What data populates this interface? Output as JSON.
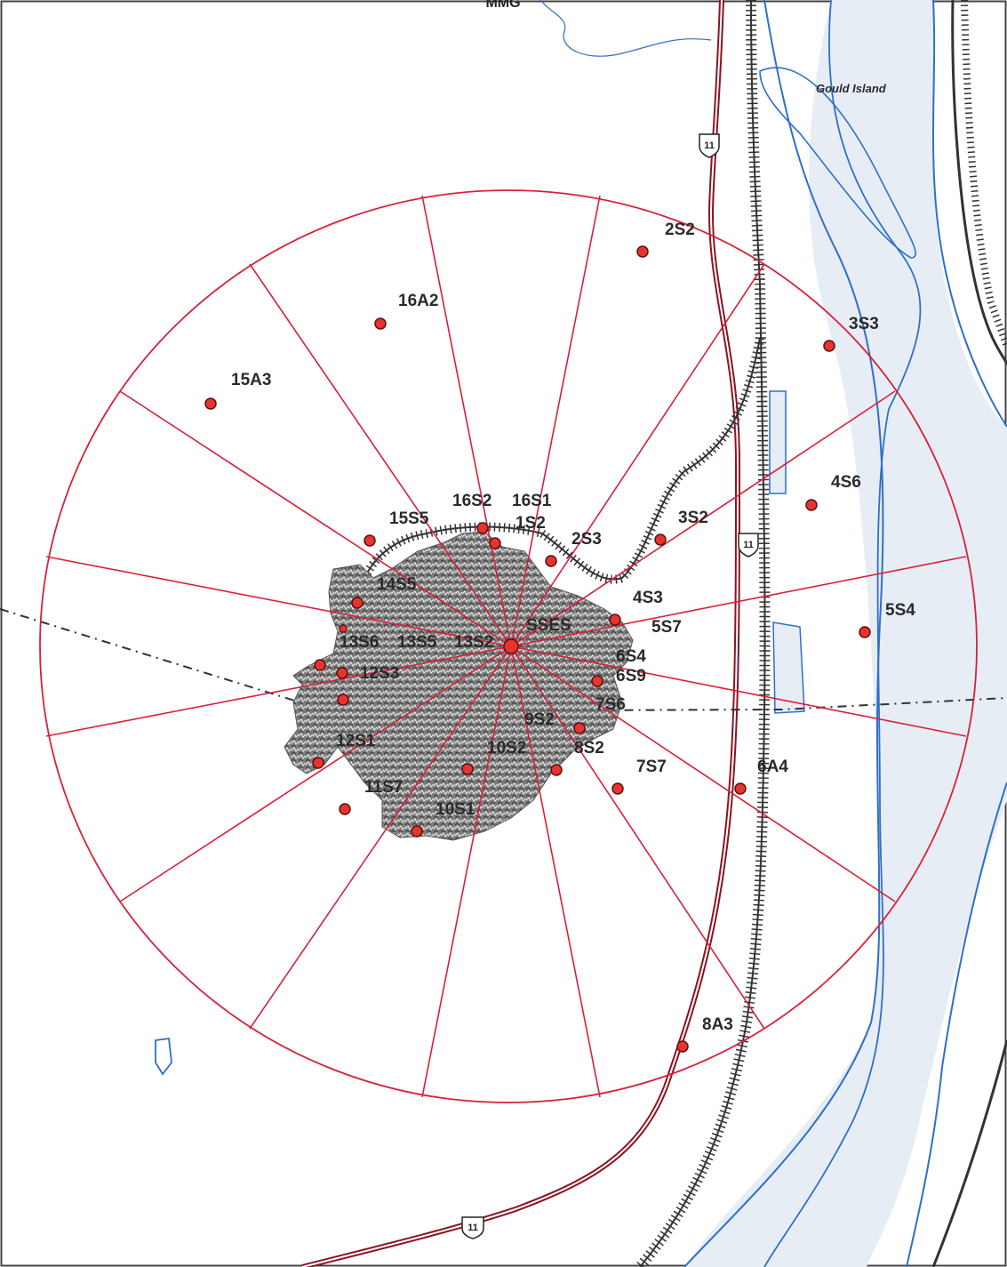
{
  "map": {
    "header_fragment": "MMG",
    "island_label": "Gould Island",
    "highway_shield_number": "11",
    "colors": {
      "ring": "#d8203a",
      "sector": "#d8203a",
      "river_fill": "#e7edf5",
      "river_edge": "#2f6fc9",
      "highway": "#8a1522",
      "railroad": "#333333",
      "marker": "#e8342e",
      "town_fill": "#8a8a8a",
      "boundary": "#333333"
    },
    "sampling_sites": [
      {
        "id": "2S2",
        "label": "2S2"
      },
      {
        "id": "16A2",
        "label": "16A2"
      },
      {
        "id": "3S3",
        "label": "3S3"
      },
      {
        "id": "15A3",
        "label": "15A3"
      },
      {
        "id": "4S6",
        "label": "4S6"
      },
      {
        "id": "16S2",
        "label": "16S2"
      },
      {
        "id": "16S1",
        "label": "16S1"
      },
      {
        "id": "15S5",
        "label": "15S5"
      },
      {
        "id": "1S2",
        "label": "1S2"
      },
      {
        "id": "3S2",
        "label": "3S2"
      },
      {
        "id": "2S3",
        "label": "2S3"
      },
      {
        "id": "14S5",
        "label": "14S5"
      },
      {
        "id": "4S3",
        "label": "4S3"
      },
      {
        "id": "5S4",
        "label": "5S4"
      },
      {
        "id": "SSES",
        "label": "SSES"
      },
      {
        "id": "5S7",
        "label": "5S7"
      },
      {
        "id": "13S6",
        "label": "13S6"
      },
      {
        "id": "13S5",
        "label": "13S5"
      },
      {
        "id": "13S2",
        "label": "13S2"
      },
      {
        "id": "6S4",
        "label": "6S4"
      },
      {
        "id": "12S3",
        "label": "12S3"
      },
      {
        "id": "6S9",
        "label": "6S9"
      },
      {
        "id": "7S6",
        "label": "7S6"
      },
      {
        "id": "9S2",
        "label": "9S2"
      },
      {
        "id": "12S1",
        "label": "12S1"
      },
      {
        "id": "10S2",
        "label": "10S2"
      },
      {
        "id": "8S2",
        "label": "8S2"
      },
      {
        "id": "7S7",
        "label": "7S7"
      },
      {
        "id": "6A4",
        "label": "6A4"
      },
      {
        "id": "11S7",
        "label": "11S7"
      },
      {
        "id": "10S1",
        "label": "10S1"
      },
      {
        "id": "8A3",
        "label": "8A3"
      }
    ]
  }
}
